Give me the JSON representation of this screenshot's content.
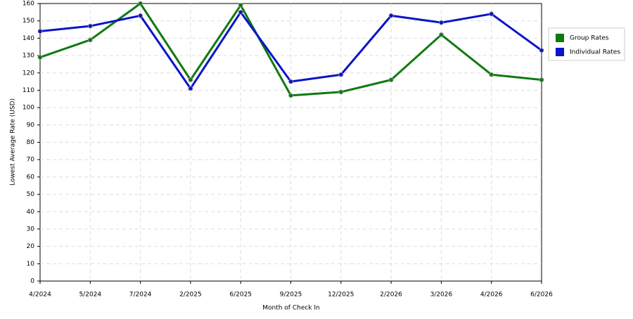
{
  "chart_data": {
    "type": "line",
    "x_label": "Month of Check In",
    "y_label": "Lowest Average Rate (USD)",
    "categories": [
      "4/2024",
      "5/2024",
      "7/2024",
      "2/2025",
      "6/2025",
      "9/2025",
      "12/2025",
      "2/2026",
      "3/2026",
      "4/2026",
      "6/2026"
    ],
    "series": [
      {
        "name": "Group Rates",
        "color": "#0f7a0f",
        "values": [
          129,
          139,
          160,
          116,
          159,
          107,
          109,
          116,
          142,
          119,
          116
        ]
      },
      {
        "name": "Individual Rates",
        "color": "#0a14c8",
        "values": [
          144,
          147,
          153,
          111,
          155,
          115,
          119,
          153,
          149,
          154,
          133
        ]
      }
    ],
    "ylim": [
      0,
      160
    ],
    "yticks": [
      0,
      10,
      20,
      30,
      40,
      50,
      60,
      70,
      80,
      90,
      100,
      110,
      120,
      130,
      140,
      150,
      160
    ],
    "grid": true,
    "legend": "right"
  }
}
